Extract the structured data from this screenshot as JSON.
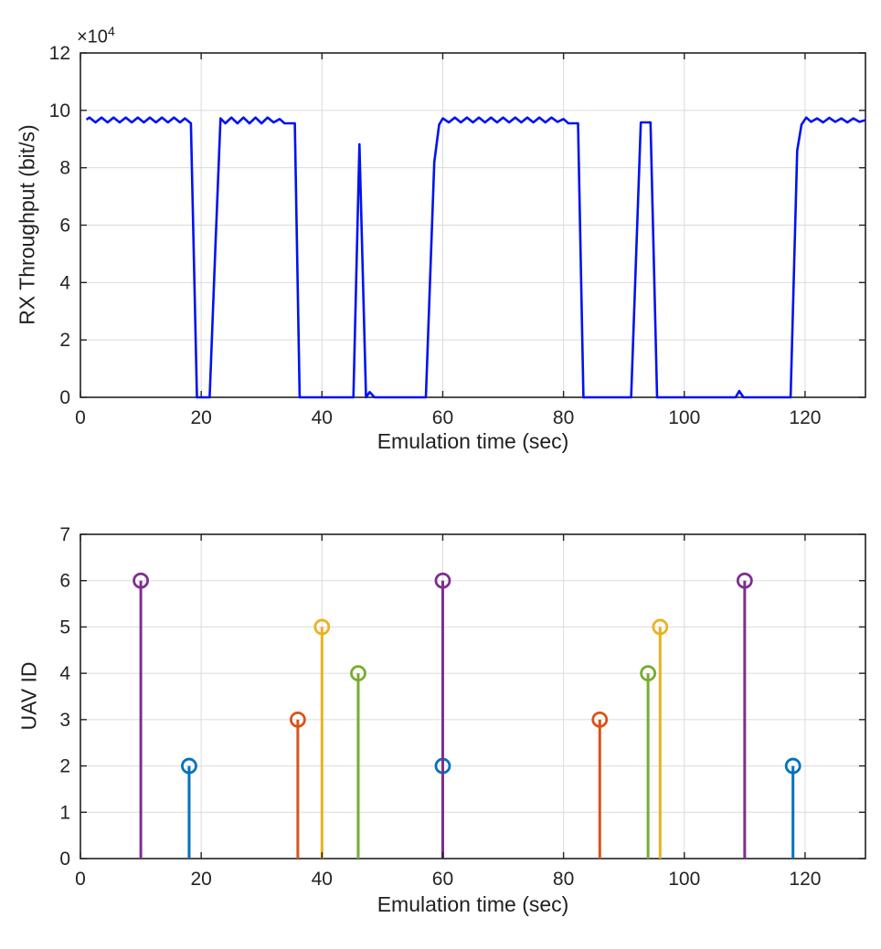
{
  "figure": {
    "background": "#ffffff"
  },
  "chart_data": [
    {
      "name": "rx-throughput",
      "type": "line",
      "title": "",
      "xlabel": "Emulation time (sec)",
      "ylabel": "RX Throughput (bit/s)",
      "y_exponent_base": "×10",
      "y_exponent_power": "4",
      "y_unit": "values shown in units of 10^4 bit/s",
      "xlim": [
        0,
        130
      ],
      "ylim": [
        0,
        12
      ],
      "xticks": [
        0,
        20,
        40,
        60,
        80,
        100,
        120
      ],
      "yticks": [
        0,
        2,
        4,
        6,
        8,
        10,
        12
      ],
      "grid": true,
      "line_color": "#0013F0",
      "points": [
        [
          1,
          9.68
        ],
        [
          1.5,
          9.75
        ],
        [
          2.5,
          9.58
        ],
        [
          3.5,
          9.75
        ],
        [
          4.5,
          9.58
        ],
        [
          5.5,
          9.75
        ],
        [
          6.5,
          9.58
        ],
        [
          7.5,
          9.75
        ],
        [
          8.5,
          9.58
        ],
        [
          9.5,
          9.75
        ],
        [
          10.5,
          9.58
        ],
        [
          11.5,
          9.75
        ],
        [
          12.5,
          9.58
        ],
        [
          13.5,
          9.75
        ],
        [
          14.5,
          9.58
        ],
        [
          15.5,
          9.75
        ],
        [
          16.5,
          9.58
        ],
        [
          17.3,
          9.72
        ],
        [
          18.3,
          9.55
        ],
        [
          19.3,
          0
        ],
        [
          21.4,
          0
        ],
        [
          22.3,
          5
        ],
        [
          23.2,
          9.72
        ],
        [
          24,
          9.55
        ],
        [
          25,
          9.75
        ],
        [
          26,
          9.55
        ],
        [
          27,
          9.75
        ],
        [
          28,
          9.55
        ],
        [
          29,
          9.75
        ],
        [
          30,
          9.55
        ],
        [
          31,
          9.75
        ],
        [
          32,
          9.58
        ],
        [
          33,
          9.7
        ],
        [
          33.8,
          9.55
        ],
        [
          35.5,
          9.55
        ],
        [
          36.3,
          0
        ],
        [
          45.2,
          0
        ],
        [
          46.2,
          8.82
        ],
        [
          47.3,
          0
        ],
        [
          47.9,
          0.18
        ],
        [
          48.7,
          0
        ],
        [
          57.2,
          0
        ],
        [
          58.6,
          8.2
        ],
        [
          59.4,
          9.5
        ],
        [
          60,
          9.72
        ],
        [
          61,
          9.58
        ],
        [
          62,
          9.75
        ],
        [
          63,
          9.58
        ],
        [
          64,
          9.75
        ],
        [
          65,
          9.58
        ],
        [
          66,
          9.75
        ],
        [
          67,
          9.58
        ],
        [
          68,
          9.75
        ],
        [
          69,
          9.58
        ],
        [
          70,
          9.75
        ],
        [
          71,
          9.58
        ],
        [
          72,
          9.75
        ],
        [
          73,
          9.58
        ],
        [
          74,
          9.75
        ],
        [
          75,
          9.58
        ],
        [
          76,
          9.75
        ],
        [
          77,
          9.58
        ],
        [
          78,
          9.75
        ],
        [
          79,
          9.6
        ],
        [
          80,
          9.7
        ],
        [
          80.8,
          9.55
        ],
        [
          82.4,
          9.55
        ],
        [
          83.3,
          0
        ],
        [
          91.2,
          0
        ],
        [
          92.8,
          9.58
        ],
        [
          94.4,
          9.58
        ],
        [
          95.5,
          0
        ],
        [
          108.5,
          0
        ],
        [
          109.1,
          0.22
        ],
        [
          109.8,
          0
        ],
        [
          117.6,
          0
        ],
        [
          118.7,
          8.6
        ],
        [
          119.4,
          9.5
        ],
        [
          120.2,
          9.75
        ],
        [
          121,
          9.6
        ],
        [
          122,
          9.72
        ],
        [
          123,
          9.58
        ],
        [
          124,
          9.74
        ],
        [
          125,
          9.6
        ],
        [
          126,
          9.72
        ],
        [
          127,
          9.58
        ],
        [
          128,
          9.72
        ],
        [
          129,
          9.6
        ],
        [
          130,
          9.66
        ]
      ]
    },
    {
      "name": "uav-id-stems",
      "type": "stem",
      "title": "",
      "xlabel": "Emulation time (sec)",
      "ylabel": "UAV ID",
      "xlim": [
        0,
        130
      ],
      "ylim": [
        0,
        7
      ],
      "xticks": [
        0,
        20,
        40,
        60,
        80,
        100,
        120
      ],
      "yticks": [
        0,
        1,
        2,
        3,
        4,
        5,
        6,
        7
      ],
      "grid": true,
      "series": [
        {
          "name": "uav-2",
          "color": "#0072BD",
          "points": [
            [
              18,
              2
            ],
            [
              60,
              2
            ],
            [
              118,
              2
            ]
          ]
        },
        {
          "name": "uav-3",
          "color": "#D95319",
          "points": [
            [
              36,
              3
            ],
            [
              86,
              3
            ]
          ]
        },
        {
          "name": "uav-4",
          "color": "#77AC30",
          "points": [
            [
              46,
              4
            ],
            [
              94,
              4
            ]
          ]
        },
        {
          "name": "uav-5",
          "color": "#EDB120",
          "points": [
            [
              40,
              5
            ],
            [
              96,
              5
            ]
          ]
        },
        {
          "name": "uav-6",
          "color": "#7E2F8E",
          "points": [
            [
              10,
              6
            ],
            [
              60,
              6
            ],
            [
              110,
              6
            ]
          ]
        }
      ]
    }
  ],
  "style": {
    "grid_color": "#DBDBDB",
    "axis_color": "#222222",
    "tick_text_color": "#242424"
  }
}
